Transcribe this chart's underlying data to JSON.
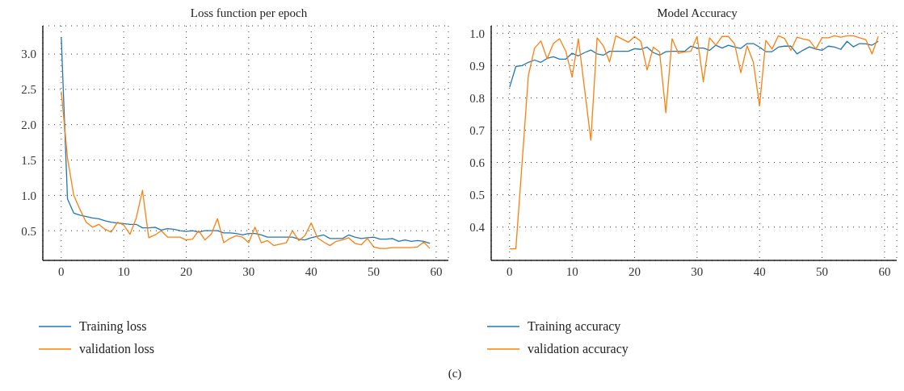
{
  "chart_data": [
    {
      "type": "line",
      "title": "Loss function per epoch",
      "x": [
        0,
        1,
        2,
        3,
        4,
        5,
        6,
        7,
        8,
        9,
        10,
        11,
        12,
        13,
        14,
        15,
        16,
        17,
        18,
        19,
        20,
        21,
        22,
        23,
        24,
        25,
        26,
        27,
        28,
        29,
        30,
        31,
        32,
        33,
        34,
        35,
        36,
        37,
        38,
        39,
        40,
        41,
        42,
        43,
        44,
        45,
        46,
        47,
        48,
        49,
        50,
        51,
        52,
        53,
        54,
        55,
        56,
        57,
        58,
        59
      ],
      "series": [
        {
          "name": "Training loss",
          "color": "#1f77b4",
          "values": [
            3.24,
            0.95,
            0.75,
            0.72,
            0.7,
            0.68,
            0.67,
            0.64,
            0.62,
            0.61,
            0.6,
            0.59,
            0.59,
            0.54,
            0.54,
            0.55,
            0.51,
            0.53,
            0.52,
            0.5,
            0.49,
            0.5,
            0.48,
            0.5,
            0.5,
            0.5,
            0.47,
            0.47,
            0.46,
            0.44,
            0.46,
            0.46,
            0.44,
            0.41,
            0.41,
            0.41,
            0.41,
            0.41,
            0.38,
            0.37,
            0.4,
            0.42,
            0.44,
            0.39,
            0.39,
            0.39,
            0.44,
            0.41,
            0.39,
            0.4,
            0.41,
            0.38,
            0.38,
            0.39,
            0.35,
            0.37,
            0.35,
            0.36,
            0.35,
            0.32
          ]
        },
        {
          "name": "validation loss",
          "color": "#ff7f0e",
          "values": [
            2.47,
            1.53,
            1.0,
            0.8,
            0.62,
            0.55,
            0.59,
            0.52,
            0.48,
            0.62,
            0.58,
            0.45,
            0.68,
            1.07,
            0.4,
            0.44,
            0.5,
            0.41,
            0.41,
            0.41,
            0.37,
            0.38,
            0.5,
            0.37,
            0.45,
            0.67,
            0.33,
            0.39,
            0.43,
            0.41,
            0.33,
            0.55,
            0.33,
            0.36,
            0.29,
            0.31,
            0.33,
            0.5,
            0.36,
            0.43,
            0.61,
            0.4,
            0.34,
            0.29,
            0.35,
            0.37,
            0.4,
            0.32,
            0.3,
            0.39,
            0.27,
            0.25,
            0.25,
            0.26,
            0.26,
            0.26,
            0.26,
            0.27,
            0.34,
            0.25
          ]
        }
      ],
      "xlim": [
        -2.95,
        61.95
      ],
      "xticks": [
        0,
        10,
        20,
        30,
        40,
        50,
        60
      ],
      "ylim": [
        0.08,
        3.4
      ],
      "yticks": [
        0.5,
        {
          "value": 1,
          "label": "1.0"
        },
        1.5,
        {
          "value": 2,
          "label": "2.0"
        },
        2.5,
        {
          "value": 3,
          "label": "3.0"
        }
      ],
      "grid": true,
      "legend": "bottom",
      "line_style": "solid"
    },
    {
      "type": "line",
      "title": "Model Accuracy",
      "x": [
        0,
        1,
        2,
        3,
        4,
        5,
        6,
        7,
        8,
        9,
        10,
        11,
        12,
        13,
        14,
        15,
        16,
        17,
        18,
        19,
        20,
        21,
        22,
        23,
        24,
        25,
        26,
        27,
        28,
        29,
        30,
        31,
        32,
        33,
        34,
        35,
        36,
        37,
        38,
        39,
        40,
        41,
        42,
        43,
        44,
        45,
        46,
        47,
        48,
        49,
        50,
        51,
        52,
        53,
        54,
        55,
        56,
        57,
        58,
        59
      ],
      "series": [
        {
          "name": "Training accuracy",
          "color": "#1f77b4",
          "values": [
            0.833,
            0.897,
            0.9,
            0.91,
            0.917,
            0.91,
            0.922,
            0.927,
            0.92,
            0.92,
            0.938,
            0.93,
            0.94,
            0.948,
            0.936,
            0.932,
            0.944,
            0.944,
            0.944,
            0.944,
            0.952,
            0.95,
            0.957,
            0.94,
            0.932,
            0.943,
            0.944,
            0.944,
            0.944,
            0.96,
            0.954,
            0.954,
            0.947,
            0.963,
            0.954,
            0.963,
            0.957,
            0.953,
            0.968,
            0.968,
            0.957,
            0.943,
            0.943,
            0.957,
            0.96,
            0.96,
            0.936,
            0.948,
            0.958,
            0.951,
            0.947,
            0.96,
            0.957,
            0.95,
            0.975,
            0.958,
            0.968,
            0.967,
            0.963,
            0.975
          ]
        },
        {
          "name": "validation accuracy",
          "color": "#ff7f0e",
          "values": [
            0.333,
            0.333,
            0.6,
            0.869,
            0.954,
            0.976,
            0.921,
            0.968,
            0.983,
            0.944,
            0.865,
            0.983,
            0.827,
            0.669,
            0.986,
            0.961,
            0.911,
            0.992,
            0.982,
            0.972,
            0.99,
            0.975,
            0.886,
            0.957,
            0.942,
            0.754,
            0.983,
            0.938,
            0.942,
            0.944,
            0.99,
            0.85,
            0.986,
            0.963,
            0.99,
            0.99,
            0.967,
            0.878,
            0.961,
            0.911,
            0.775,
            0.978,
            0.951,
            0.992,
            0.984,
            0.947,
            0.988,
            0.982,
            0.978,
            0.951,
            0.986,
            0.986,
            0.992,
            0.988,
            0.992,
            0.992,
            0.986,
            0.98,
            0.936,
            0.99
          ]
        }
      ],
      "xlim": [
        -2.95,
        61.95
      ],
      "xticks": [
        0,
        10,
        20,
        30,
        40,
        50,
        60
      ],
      "ylim": [
        0.297,
        1.023
      ],
      "yticks": [
        0.4,
        0.5,
        0.6,
        0.7,
        0.8,
        0.9,
        {
          "value": 1,
          "label": "1.0"
        }
      ],
      "grid": true,
      "legend": "bottom",
      "line_style": "solid",
      "annotations": [
        "(c)"
      ]
    }
  ]
}
